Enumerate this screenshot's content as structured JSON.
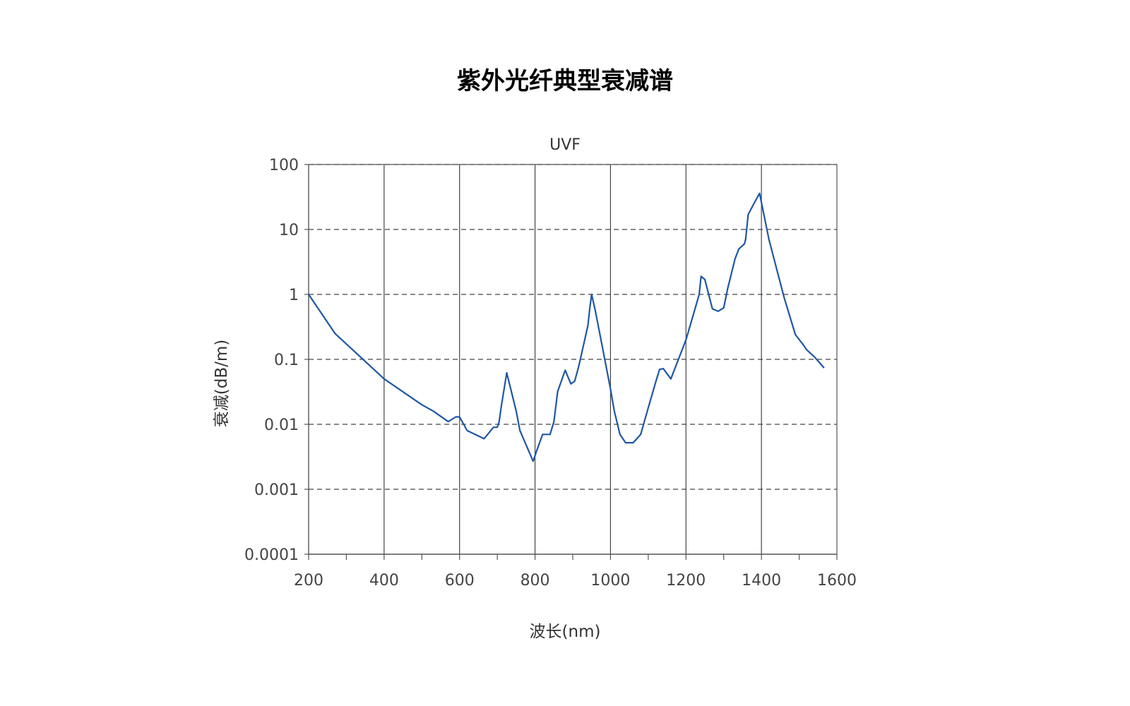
{
  "page": {
    "title": "紫外光纤典型衰减谱"
  },
  "chart_data": {
    "type": "line",
    "title": "UVF",
    "xlabel": "波长(nm)",
    "ylabel": "衰减(dB/m)",
    "xlim": [
      200,
      1600
    ],
    "ylim": [
      0.0001,
      100
    ],
    "yscale": "log",
    "x_ticks": [
      200,
      400,
      600,
      800,
      1000,
      1200,
      1400,
      1600
    ],
    "x_tick_labels": [
      "200",
      "400",
      "600",
      "800",
      "1000",
      "1200",
      "1400",
      "1600"
    ],
    "x_minor_ticks": [
      300,
      500,
      700,
      900,
      1100,
      1300,
      1500
    ],
    "y_ticks": [
      0.0001,
      0.001,
      0.01,
      0.1,
      1,
      10,
      100
    ],
    "y_tick_labels": [
      "0.0001",
      "0.001",
      "0.01",
      "0.1",
      "1",
      "10",
      "100"
    ],
    "grid": {
      "x": "solid",
      "y": "dashed"
    },
    "legend": "none",
    "colors": {
      "series": "#1f57a4",
      "grid": "#444444",
      "axis": "#555555"
    },
    "series": [
      {
        "x": [
          200,
          270,
          400,
          500,
          530,
          570,
          590,
          600,
          620,
          665,
          690,
          700,
          705,
          710,
          725,
          750,
          760,
          795,
          805,
          820,
          840,
          850,
          860,
          880,
          895,
          905,
          915,
          920,
          940,
          945,
          950,
          960,
          980,
          1000,
          1010,
          1025,
          1040,
          1050,
          1060,
          1080,
          1100,
          1120,
          1130,
          1140,
          1160,
          1180,
          1200,
          1220,
          1235,
          1240,
          1250,
          1270,
          1285,
          1300,
          1310,
          1330,
          1340,
          1355,
          1358,
          1365,
          1380,
          1395,
          1420,
          1460,
          1490,
          1510,
          1520,
          1540,
          1565
        ],
        "y": [
          1.0,
          0.25,
          0.05,
          0.02,
          0.016,
          0.011,
          0.013,
          0.013,
          0.008,
          0.006,
          0.009,
          0.009,
          0.011,
          0.018,
          0.062,
          0.016,
          0.008,
          0.0027,
          0.004,
          0.007,
          0.007,
          0.011,
          0.032,
          0.068,
          0.042,
          0.046,
          0.075,
          0.1,
          0.33,
          0.6,
          1.0,
          0.55,
          0.14,
          0.035,
          0.016,
          0.007,
          0.0052,
          0.0052,
          0.0052,
          0.007,
          0.018,
          0.045,
          0.07,
          0.072,
          0.05,
          0.1,
          0.2,
          0.5,
          1.0,
          1.9,
          1.7,
          0.6,
          0.55,
          0.62,
          1.2,
          3.5,
          5.0,
          6.0,
          7.0,
          17.0,
          25.0,
          36.0,
          7.0,
          0.9,
          0.24,
          0.17,
          0.14,
          0.11,
          0.075
        ]
      }
    ]
  }
}
